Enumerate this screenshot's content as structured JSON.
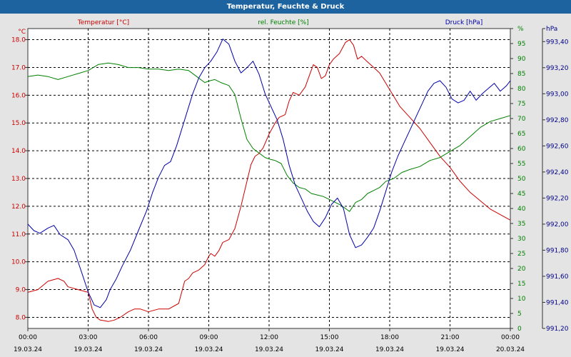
{
  "window_title": "Temperatur, Feuchte & Druck",
  "chart_data": {
    "type": "line",
    "title": "Temperatur, Feuchte & Druck",
    "x_ticks": [
      {
        "time": "00:00",
        "date": "19.03.24"
      },
      {
        "time": "03:00",
        "date": "19.03.24"
      },
      {
        "time": "06:00",
        "date": "19.03.24"
      },
      {
        "time": "09:00",
        "date": "19.03.24"
      },
      {
        "time": "12:00",
        "date": "19.03.24"
      },
      {
        "time": "15:00",
        "date": "19.03.24"
      },
      {
        "time": "18:00",
        "date": "19.03.24"
      },
      {
        "time": "21:00",
        "date": "19.03.24"
      },
      {
        "time": "00:00",
        "date": "20.03.24"
      }
    ],
    "xlim_hours": [
      0,
      24
    ],
    "axes": {
      "temperature": {
        "unit": "°C",
        "label": "Temperatur [°C]",
        "ylim": [
          7.6,
          18.4
        ],
        "ticks": [
          "8.0",
          "9.0",
          "10.0",
          "11.0",
          "12.0",
          "13.0",
          "14.0",
          "15.0",
          "16.0",
          "17.0",
          "18.0"
        ],
        "tick_values": [
          8,
          9,
          10,
          11,
          12,
          13,
          14,
          15,
          16,
          17,
          18
        ]
      },
      "humidity": {
        "unit": "%",
        "label": "rel. Feuchte [%]",
        "ylim": [
          0,
          100
        ],
        "ticks": [
          "0",
          "5",
          "10",
          "15",
          "20",
          "25",
          "30",
          "35",
          "40",
          "45",
          "50",
          "55",
          "60",
          "65",
          "70",
          "75",
          "80",
          "85",
          "90",
          "95",
          "%"
        ],
        "tick_values": [
          0,
          5,
          10,
          15,
          20,
          25,
          30,
          35,
          40,
          45,
          50,
          55,
          60,
          65,
          70,
          75,
          80,
          85,
          90,
          95,
          100
        ]
      },
      "pressure": {
        "unit": "hPa",
        "label": "Druck [hPa]",
        "ylim": [
          991.2,
          993.5
        ],
        "ticks": [
          "991,20",
          "991,40",
          "991,60",
          "991,80",
          "992,00",
          "992,20",
          "992,40",
          "992,60",
          "992,80",
          "993,00",
          "993,20",
          "993,40",
          "hPa"
        ],
        "tick_values": [
          991.2,
          991.4,
          991.6,
          991.8,
          992.0,
          992.2,
          992.4,
          992.6,
          992.8,
          993.0,
          993.2,
          993.4,
          993.5
        ]
      }
    },
    "series": [
      {
        "name": "Temperatur [°C]",
        "axis": "temperature",
        "color": "#cc0000",
        "x": [
          0,
          0.5,
          1,
          1.5,
          1.8,
          2,
          2.5,
          3,
          3.2,
          3.4,
          3.6,
          3.8,
          4,
          4.3,
          4.6,
          5,
          5.3,
          5.6,
          6,
          6.5,
          7,
          7.5,
          7.8,
          8,
          8.2,
          8.5,
          8.8,
          9,
          9.1,
          9.3,
          9.5,
          9.7,
          10,
          10.3,
          10.6,
          10.9,
          11.1,
          11.3,
          11.5,
          11.7,
          12,
          12.3,
          12.5,
          12.8,
          13,
          13.2,
          13.5,
          13.8,
          14,
          14.2,
          14.4,
          14.6,
          14.8,
          15,
          15.2,
          15.5,
          15.8,
          16,
          16.2,
          16.4,
          16.6,
          16.9,
          17.2,
          17.5,
          18,
          18.5,
          19,
          19.5,
          20,
          20.5,
          21,
          21.5,
          22,
          22.5,
          23,
          23.5,
          24
        ],
        "values": [
          8.9,
          9.0,
          9.3,
          9.4,
          9.3,
          9.1,
          9.0,
          8.9,
          8.3,
          8.0,
          7.9,
          7.88,
          7.85,
          7.9,
          8.0,
          8.2,
          8.3,
          8.3,
          8.2,
          8.3,
          8.3,
          8.5,
          9.3,
          9.4,
          9.6,
          9.7,
          9.9,
          10.2,
          10.3,
          10.2,
          10.4,
          10.7,
          10.8,
          11.2,
          12.0,
          12.9,
          13.5,
          13.8,
          13.9,
          14.1,
          14.6,
          15.0,
          15.2,
          15.3,
          15.8,
          16.1,
          16.0,
          16.3,
          16.7,
          17.1,
          17.0,
          16.6,
          16.7,
          17.1,
          17.3,
          17.5,
          17.9,
          18.0,
          17.8,
          17.3,
          17.4,
          17.2,
          17.0,
          16.8,
          16.2,
          15.6,
          15.2,
          14.8,
          14.3,
          13.8,
          13.4,
          12.9,
          12.5,
          12.2,
          11.9,
          11.7,
          11.5
        ]
      },
      {
        "name": "rel. Feuchte [%]",
        "axis": "humidity",
        "color": "#008000",
        "x": [
          0,
          0.5,
          1,
          1.5,
          2,
          2.5,
          3,
          3.5,
          4,
          4.5,
          5,
          5.5,
          6,
          6.5,
          7,
          7.5,
          8,
          8.5,
          8.8,
          9,
          9.3,
          9.6,
          10,
          10.3,
          10.6,
          10.9,
          11.2,
          11.5,
          11.8,
          12,
          12.3,
          12.6,
          12.9,
          13.2,
          13.5,
          13.8,
          14.1,
          14.4,
          14.7,
          15,
          15.3,
          15.6,
          15.8,
          16,
          16.3,
          16.6,
          16.9,
          17.2,
          17.5,
          17.8,
          18.2,
          18.6,
          19,
          19.5,
          20,
          20.5,
          21,
          21.5,
          22,
          22.5,
          23,
          23.5,
          24
        ],
        "values": [
          84,
          84.5,
          84,
          83,
          84,
          85,
          86,
          88,
          88.5,
          88,
          87,
          87,
          86.5,
          86.5,
          86,
          86.5,
          86,
          83.5,
          82,
          82.5,
          83,
          82,
          81,
          78,
          70,
          63,
          60,
          58.5,
          57,
          56.5,
          56,
          55,
          51,
          48.5,
          47,
          46.5,
          45,
          44.5,
          44,
          43,
          42,
          41,
          40,
          39,
          42,
          43,
          45,
          46,
          47,
          49,
          50,
          52,
          53,
          54,
          56,
          57,
          59,
          61,
          64,
          67,
          69,
          70,
          71
        ]
      },
      {
        "name": "Druck [hPa]",
        "axis": "pressure",
        "color": "#0000aa",
        "x": [
          0,
          0.3,
          0.6,
          1,
          1.3,
          1.6,
          2,
          2.3,
          2.7,
          3,
          3.3,
          3.6,
          3.9,
          4.1,
          4.4,
          4.7,
          5.1,
          5.5,
          5.9,
          6.2,
          6.5,
          6.8,
          7.1,
          7.4,
          7.8,
          8.2,
          8.5,
          8.8,
          9.1,
          9.4,
          9.7,
          10,
          10.3,
          10.6,
          10.9,
          11.2,
          11.5,
          11.8,
          12.1,
          12.4,
          12.7,
          13,
          13.3,
          13.6,
          13.9,
          14.2,
          14.5,
          14.8,
          15.1,
          15.4,
          15.7,
          16,
          16.3,
          16.6,
          16.9,
          17.2,
          17.5,
          17.8,
          18.1,
          18.4,
          18.7,
          19,
          19.3,
          19.6,
          19.9,
          20.2,
          20.5,
          20.8,
          21.1,
          21.4,
          21.7,
          22,
          22.3,
          22.6,
          22.9,
          23.2,
          23.5,
          23.8,
          24
        ],
        "values": [
          992.0,
          991.95,
          991.93,
          991.97,
          991.99,
          991.92,
          991.88,
          991.8,
          991.62,
          991.48,
          991.38,
          991.36,
          991.42,
          991.5,
          991.58,
          991.68,
          991.8,
          991.95,
          992.1,
          992.24,
          992.36,
          992.45,
          992.48,
          992.6,
          992.8,
          993.0,
          993.12,
          993.2,
          993.25,
          993.32,
          993.42,
          993.38,
          993.25,
          993.16,
          993.2,
          993.25,
          993.15,
          993.0,
          992.9,
          992.8,
          992.65,
          992.45,
          992.3,
          992.2,
          992.1,
          992.02,
          991.98,
          992.05,
          992.15,
          992.2,
          992.12,
          991.92,
          991.82,
          991.84,
          991.9,
          991.97,
          992.1,
          992.25,
          992.4,
          992.52,
          992.62,
          992.72,
          992.82,
          992.92,
          993.02,
          993.08,
          993.1,
          993.05,
          992.96,
          992.93,
          992.95,
          993.02,
          992.95,
          993.0,
          993.04,
          993.08,
          993.02,
          993.06,
          993.1
        ]
      }
    ]
  }
}
